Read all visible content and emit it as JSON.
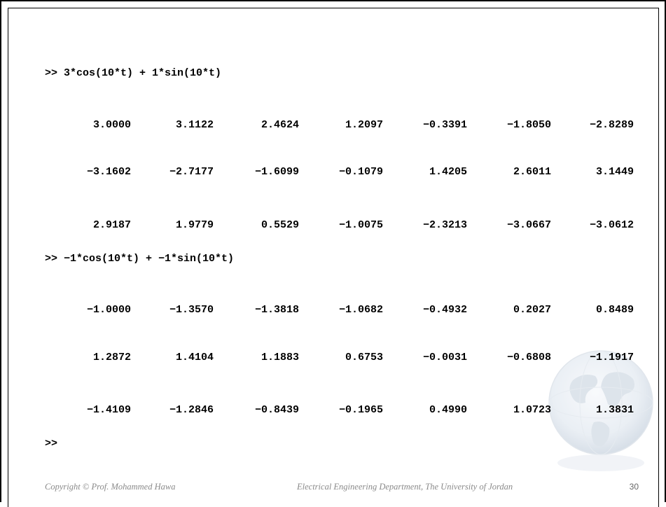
{
  "command1": ">> 3*cos(10*t) + 1*sin(10*t)",
  "output1": [
    [
      "3.0000",
      "3.1122",
      "2.4624",
      "1.2097",
      "−0.3391",
      "−1.8050",
      "−2.8289"
    ],
    [
      "−3.1602",
      "−2.7177",
      "−1.6099",
      "−0.1079",
      "1.4205",
      "2.6011",
      "3.1449"
    ],
    [
      "2.9187",
      "1.9779",
      "0.5529",
      "−1.0075",
      "−2.3213",
      "−3.0667",
      "−3.0612"
    ]
  ],
  "command2": ">> −1*cos(10*t) + −1*sin(10*t)",
  "output2": [
    [
      "−1.0000",
      "−1.3570",
      "−1.3818",
      "−1.0682",
      "−0.4932",
      "0.2027",
      "0.8489"
    ],
    [
      "1.2872",
      "1.4104",
      "1.1883",
      "0.6753",
      "−0.0031",
      "−0.6808",
      "−1.1917"
    ],
    [
      "−1.4109",
      "−1.2846",
      "−0.8439",
      "−0.1965",
      "0.4990",
      "1.0723",
      "1.3831"
    ]
  ],
  "prompt": ">>",
  "footer": {
    "copyright": "Copyright © Prof. Mohammed Hawa",
    "department": "Electrical Engineering Department, The University of Jordan",
    "page_number": "30"
  },
  "decor": {
    "globe": "globe-icon"
  }
}
